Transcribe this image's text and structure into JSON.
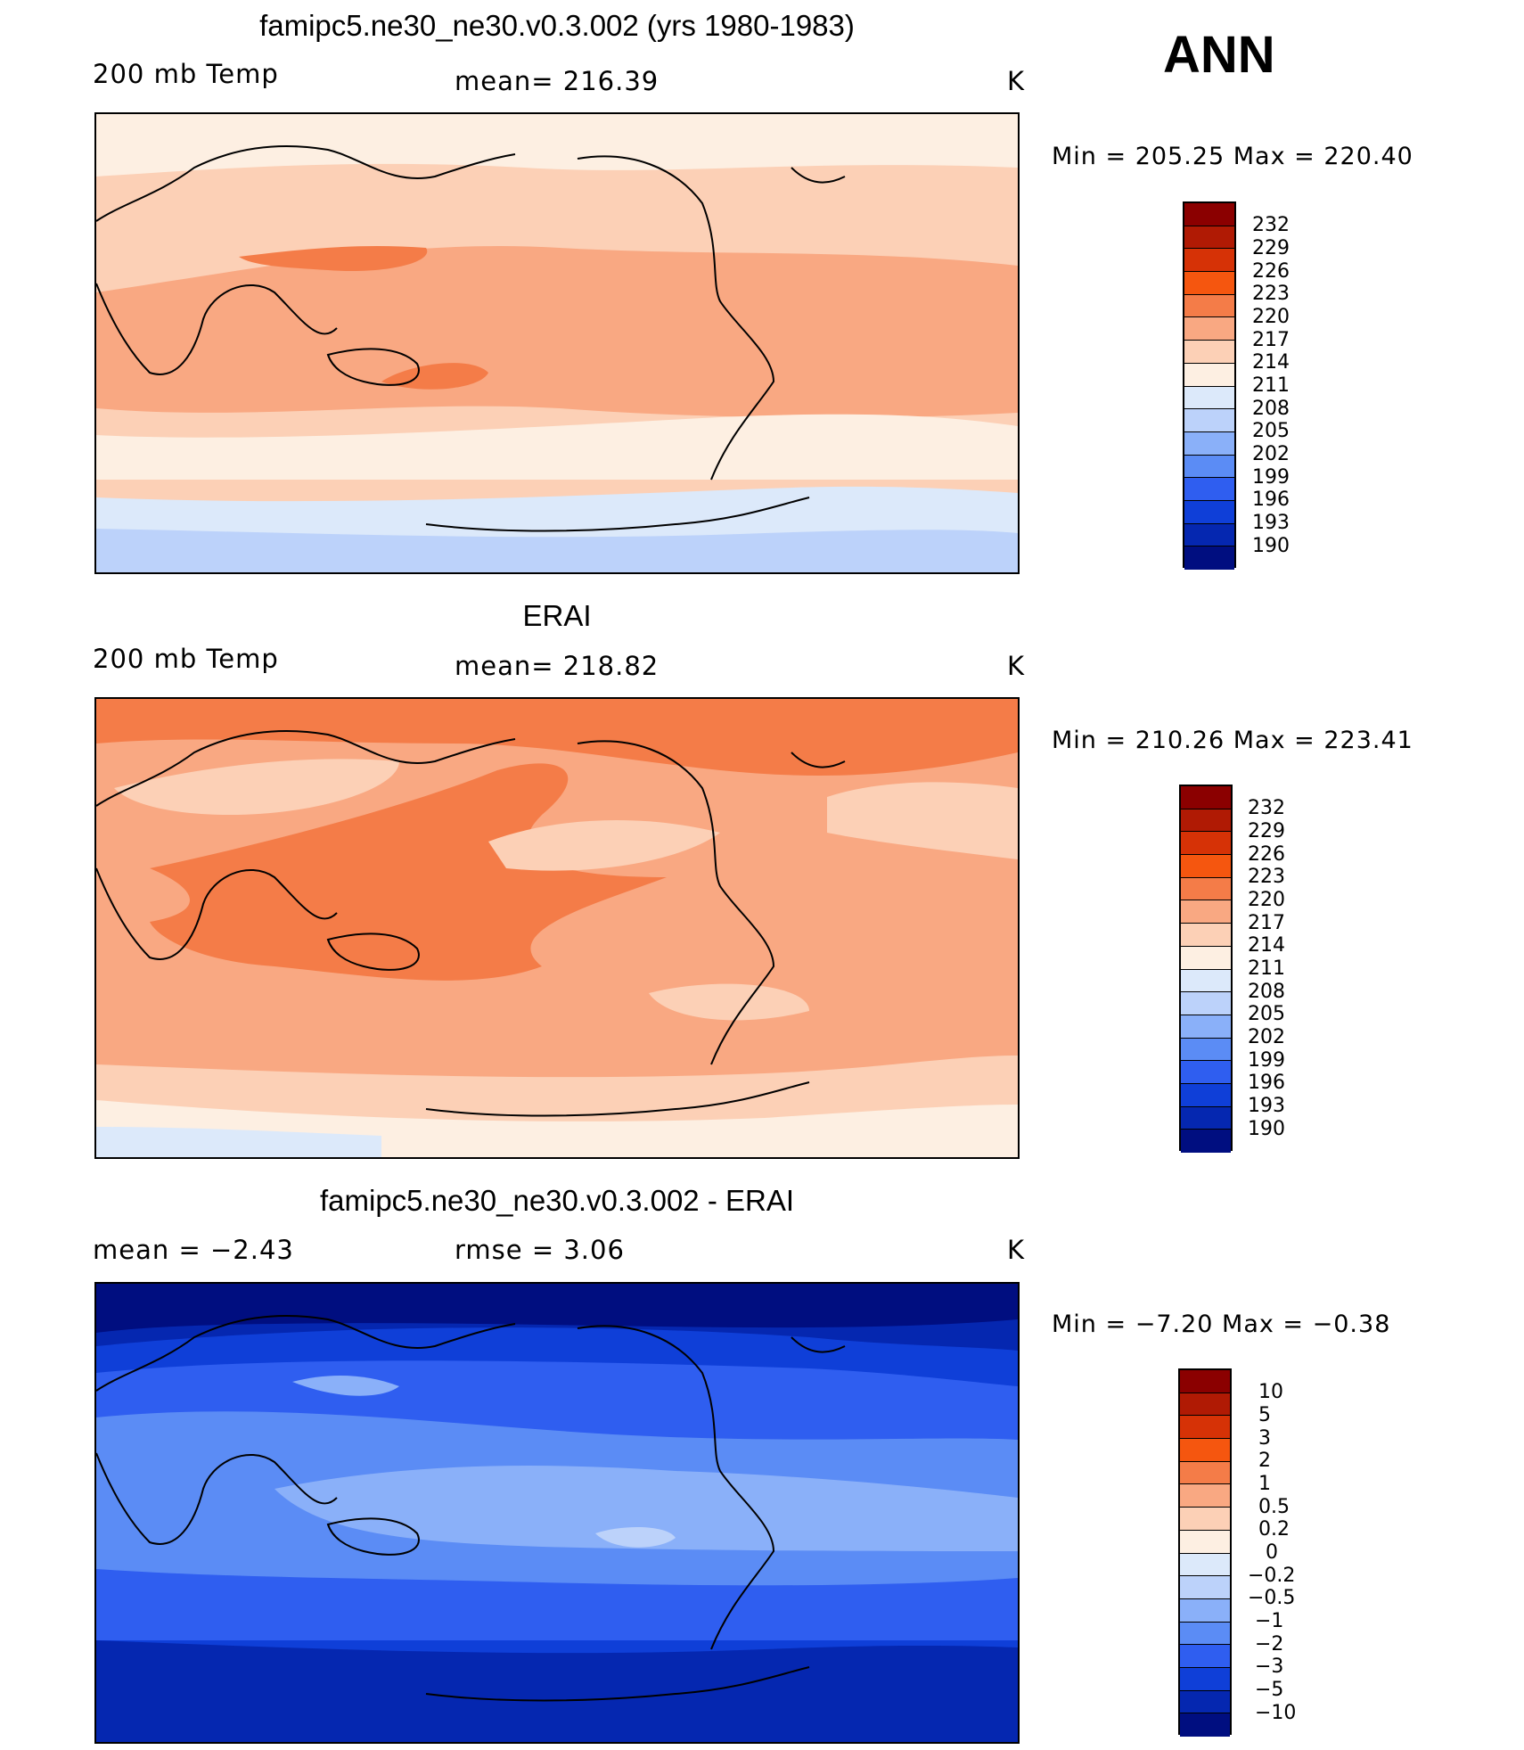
{
  "season": "ANN",
  "panels": [
    {
      "title": "famipc5.ne30_ne30.v0.3.002 (yrs 1980-1983)",
      "left_label": "200 mb Temp",
      "center_label": "mean= 216.39",
      "unit": "K",
      "minmax": "Min  =  205.25  Max  =  220.40"
    },
    {
      "title": "ERAI",
      "left_label": "200 mb Temp",
      "center_label": "mean= 218.82",
      "unit": "K",
      "minmax": "Min  =  210.26  Max  =  223.41"
    },
    {
      "title": "famipc5.ne30_ne30.v0.3.002 - ERAI",
      "left_label": "mean  =    −2.43",
      "center_label": "rmse  =     3.06",
      "unit": "K",
      "minmax": "Min  =   −7.20  Max  =    −0.38"
    }
  ],
  "colorbars": {
    "absolute_ticks": [
      "232",
      "229",
      "226",
      "223",
      "220",
      "217",
      "214",
      "211",
      "208",
      "205",
      "202",
      "199",
      "196",
      "193",
      "190"
    ],
    "difference_ticks": [
      "10",
      "5",
      "3",
      "2",
      "1",
      "0.5",
      "0.2",
      "0",
      "−0.2",
      "−0.5",
      "−1",
      "−2",
      "−3",
      "−5",
      "−10"
    ],
    "colors": [
      "#8b0000",
      "#b01a04",
      "#d63206",
      "#f5560f",
      "#f47c48",
      "#f9a882",
      "#fcd0b6",
      "#fdefe2",
      "#dce9fa",
      "#bcd2fa",
      "#8ab0f9",
      "#5b8cf5",
      "#2f5ef0",
      "#0f3fd8",
      "#0527b0",
      "#000e80"
    ]
  }
}
